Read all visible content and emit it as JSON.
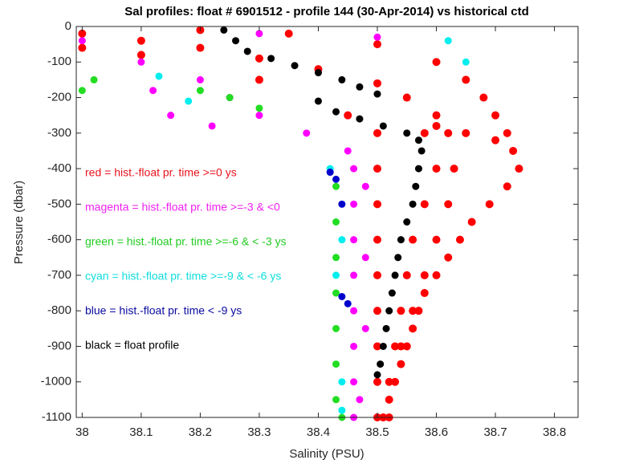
{
  "chart_data": {
    "type": "scatter",
    "title": "Sal profiles: float # 6901512 - profile 144 (30-Apr-2014) vs historical ctd",
    "x_label": "Salinity (PSU)",
    "y_label": "Pressure (dbar)",
    "xlim": [
      37.99,
      38.84
    ],
    "ylim": [
      -1100,
      0
    ],
    "xticks": [
      38,
      38.1,
      38.2,
      38.3,
      38.4,
      38.5,
      38.6,
      38.7,
      38.8
    ],
    "yticks": [
      0,
      -100,
      -200,
      -300,
      -400,
      -500,
      -600,
      -700,
      -800,
      -900,
      -1000,
      -1100
    ],
    "annotations": [
      {
        "text": "red = hist.-float pr. time >=0 ys",
        "color": "#e8141e"
      },
      {
        "text": "magenta = hist.-float pr. time >=-3 & <0",
        "color": "#ee22ee"
      },
      {
        "text": "green = hist.-float pr. time >=-6 & < -3 ys",
        "color": "#22cc22"
      },
      {
        "text": "cyan = hist.-float pr. time >=-9 & < -6 ys",
        "color": "#11dddd"
      },
      {
        "text": "blue = hist.-float pr. time < -9 ys",
        "color": "#0a0aa0"
      },
      {
        "text": "black = float profile",
        "color": "#000000"
      }
    ],
    "series": [
      {
        "name": "red",
        "color": "#ff0000",
        "x": [
          38.6,
          38.65,
          38.7,
          38.73,
          38.74,
          38.72,
          38.69,
          38.66,
          38.64,
          38.62,
          38.6,
          38.58,
          38.57,
          38.56,
          38.55,
          38.54,
          38.53,
          38.52,
          38.51,
          38.0,
          38.1,
          38.2,
          38.3,
          38.4,
          38.5,
          38.55,
          38.6,
          38.62,
          38.63,
          38.62,
          38.6,
          38.58,
          38.56,
          38.54,
          38.52,
          38.2,
          38.35,
          38.5,
          38.6,
          38.65,
          38.68,
          38.7,
          38.72,
          38.0,
          38.1,
          38.3,
          38.45,
          38.5,
          38.5,
          38.5,
          38.5,
          38.5,
          38.5,
          38.5,
          38.5,
          38.5,
          38.58,
          38.6,
          38.58,
          38.56,
          38.55,
          38.54,
          38.53,
          38.52
        ],
        "values": [
          -280,
          -300,
          -320,
          -350,
          -400,
          -450,
          -500,
          -550,
          -600,
          -650,
          -700,
          -750,
          -800,
          -850,
          -900,
          -950,
          -1000,
          -1050,
          -1100,
          -20,
          -40,
          -60,
          -90,
          -120,
          -160,
          -200,
          -250,
          -300,
          -400,
          -500,
          -600,
          -700,
          -800,
          -900,
          -1000,
          -10,
          -20,
          -50,
          -100,
          -150,
          -200,
          -250,
          -300,
          -60,
          -80,
          -150,
          -250,
          -300,
          -400,
          -500,
          -600,
          -700,
          -800,
          -900,
          -1000,
          -1100,
          -300,
          -400,
          -500,
          -600,
          -700,
          -800,
          -900,
          -1100
        ]
      },
      {
        "name": "magenta",
        "color": "#ff00ff",
        "x": [
          38.1,
          38.12,
          38.0,
          38.2,
          38.25,
          38.3,
          38.38,
          38.45,
          38.46,
          38.46,
          38.46,
          38.46,
          38.46,
          38.46,
          38.46,
          38.46,
          38.15,
          38.22,
          38.48,
          38.48,
          38.48,
          38.47,
          38.3,
          38.5
        ],
        "values": [
          -100,
          -180,
          -40,
          -150,
          -200,
          -250,
          -300,
          -350,
          -400,
          -500,
          -600,
          -700,
          -800,
          -900,
          -1000,
          -1100,
          -250,
          -280,
          -450,
          -650,
          -850,
          -1050,
          -20,
          -30
        ]
      },
      {
        "name": "green",
        "color": "#22dd22",
        "x": [
          38.0,
          38.02,
          38.2,
          38.25,
          38.3,
          38.43,
          38.43,
          38.43,
          38.43,
          38.43,
          38.43,
          38.43,
          38.44
        ],
        "values": [
          -180,
          -150,
          -180,
          -200,
          -230,
          -450,
          -550,
          -650,
          -750,
          -850,
          -950,
          -1050,
          -1100
        ]
      },
      {
        "name": "cyan",
        "color": "#00eeee",
        "x": [
          38.13,
          38.18,
          38.42,
          38.44,
          38.43,
          38.44,
          38.44,
          38.62,
          38.65
        ],
        "values": [
          -140,
          -210,
          -400,
          -600,
          -700,
          -1000,
          -1080,
          -40,
          -100
        ]
      },
      {
        "name": "blue",
        "color": "#0000cc",
        "x": [
          38.42,
          38.43,
          38.44,
          38.45,
          38.44
        ],
        "values": [
          -410,
          -430,
          -500,
          -780,
          -760
        ]
      },
      {
        "name": "black",
        "color": "#000000",
        "x": [
          38.24,
          38.26,
          38.28,
          38.32,
          38.36,
          38.4,
          38.44,
          38.47,
          38.5,
          38.4,
          38.43,
          38.47,
          38.51,
          38.55,
          38.57,
          38.575,
          38.57,
          38.565,
          38.56,
          38.55,
          38.54,
          38.535,
          38.53,
          38.525,
          38.52,
          38.515,
          38.51,
          38.505,
          38.5
        ],
        "values": [
          -10,
          -40,
          -70,
          -90,
          -110,
          -130,
          -150,
          -170,
          -190,
          -210,
          -240,
          -260,
          -280,
          -300,
          -320,
          -350,
          -400,
          -450,
          -500,
          -550,
          -600,
          -650,
          -700,
          -750,
          -800,
          -850,
          -900,
          -950,
          -980
        ]
      }
    ]
  }
}
